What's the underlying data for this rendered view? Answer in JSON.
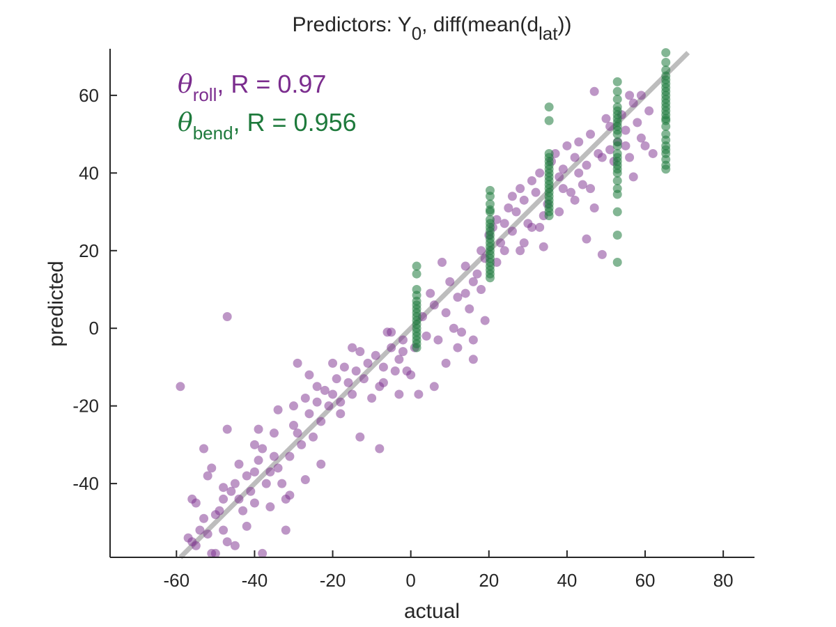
{
  "title": {
    "main": "Predictors: Y",
    "sub1": "0",
    "mid": ", diff(mean(d",
    "sub2": "lat",
    "end": "))"
  },
  "chart_data": {
    "type": "scatter",
    "xlabel": "actual",
    "ylabel": "predicted",
    "xlim": [
      -77,
      88
    ],
    "ylim": [
      -59,
      72
    ],
    "xticks": [
      -60,
      -40,
      -20,
      0,
      20,
      40,
      60,
      80
    ],
    "yticks": [
      -40,
      -20,
      0,
      20,
      40,
      60
    ],
    "xtick_labels": [
      "-60",
      "-40",
      "-20",
      "0",
      "20",
      "40",
      "60",
      "80"
    ],
    "ytick_labels": [
      "-40",
      "-20",
      "0",
      "20",
      "40",
      "60"
    ],
    "grid": false,
    "legend_placement": "top-left",
    "reference_line": {
      "from": [
        -59,
        -59
      ],
      "to": [
        71,
        71
      ],
      "color": "#bdbdbd"
    },
    "series": [
      {
        "name": "θroll",
        "legend_text": ", R = 0.97",
        "legend_sub": "roll",
        "color": "#7b2d8e",
        "r": 0.97,
        "points": [
          [
            -59,
            -15
          ],
          [
            -57,
            -54
          ],
          [
            -56,
            -44
          ],
          [
            -55,
            -45
          ],
          [
            -56,
            -55
          ],
          [
            -54,
            -52
          ],
          [
            -53,
            -49
          ],
          [
            -52,
            -53
          ],
          [
            -51,
            -58
          ],
          [
            -53,
            -31
          ],
          [
            -52,
            -38
          ],
          [
            -50,
            -48
          ],
          [
            -49,
            -47
          ],
          [
            -48,
            -52
          ],
          [
            -47,
            -55
          ],
          [
            -48,
            -41
          ],
          [
            -47,
            -26
          ],
          [
            -46,
            -42
          ],
          [
            -45,
            -40
          ],
          [
            -44,
            -44
          ],
          [
            -43,
            -47
          ],
          [
            -42,
            -38
          ],
          [
            -41,
            -42
          ],
          [
            -40,
            -30
          ],
          [
            -40,
            -37
          ],
          [
            -39,
            -34
          ],
          [
            -38,
            -31
          ],
          [
            -37,
            -40
          ],
          [
            -36,
            -37
          ],
          [
            -35,
            -33
          ],
          [
            -34,
            -36
          ],
          [
            -33,
            -40
          ],
          [
            -32,
            -44
          ],
          [
            -31,
            -33
          ],
          [
            -30,
            -25
          ],
          [
            -29,
            -27
          ],
          [
            -28,
            -30
          ],
          [
            -27,
            -18
          ],
          [
            -26,
            -22
          ],
          [
            -25,
            -28
          ],
          [
            -24,
            -19
          ],
          [
            -23,
            -24
          ],
          [
            -22,
            -16
          ],
          [
            -21,
            -20
          ],
          [
            -20,
            -17
          ],
          [
            -19,
            -13
          ],
          [
            -18,
            -19
          ],
          [
            -17,
            -10
          ],
          [
            -16,
            -14
          ],
          [
            -15,
            -17
          ],
          [
            -14,
            -11
          ],
          [
            -13,
            -6
          ],
          [
            -12,
            -13
          ],
          [
            -11,
            -9
          ],
          [
            -10,
            -18
          ],
          [
            -9,
            -7
          ],
          [
            -8,
            -15
          ],
          [
            -7,
            -10
          ],
          [
            -6,
            -1
          ],
          [
            -5,
            -5
          ],
          [
            -4,
            -11
          ],
          [
            -3,
            -8
          ],
          [
            -2,
            -3
          ],
          [
            -1,
            -11
          ],
          [
            0,
            -12
          ],
          [
            1,
            -5
          ],
          [
            -47,
            3
          ],
          [
            -38,
            -58
          ],
          [
            -32,
            -52
          ],
          [
            -8,
            -31
          ],
          [
            2,
            -17
          ],
          [
            6,
            -15
          ],
          [
            3,
            3
          ],
          [
            4,
            -2
          ],
          [
            5,
            9
          ],
          [
            6,
            6
          ],
          [
            7,
            -3
          ],
          [
            8,
            17
          ],
          [
            9,
            -9
          ],
          [
            10,
            12
          ],
          [
            11,
            0
          ],
          [
            12,
            8
          ],
          [
            13,
            -1
          ],
          [
            14,
            16
          ],
          [
            15,
            5
          ],
          [
            16,
            -8
          ],
          [
            17,
            14
          ],
          [
            18,
            20
          ],
          [
            18,
            10
          ],
          [
            19,
            2
          ],
          [
            20,
            24
          ],
          [
            19,
            18
          ],
          [
            21,
            26
          ],
          [
            22,
            28
          ],
          [
            23,
            22
          ],
          [
            24,
            27
          ],
          [
            25,
            31
          ],
          [
            26,
            34
          ],
          [
            27,
            30
          ],
          [
            28,
            36
          ],
          [
            29,
            33
          ],
          [
            30,
            27
          ],
          [
            31,
            38
          ],
          [
            32,
            35
          ],
          [
            33,
            40
          ],
          [
            34,
            29
          ],
          [
            34,
            21
          ],
          [
            36,
            43
          ],
          [
            37,
            45
          ],
          [
            38,
            39
          ],
          [
            39,
            41
          ],
          [
            40,
            47
          ],
          [
            41,
            35
          ],
          [
            42,
            44
          ],
          [
            43,
            48
          ],
          [
            44,
            37
          ],
          [
            45,
            42
          ],
          [
            45,
            23
          ],
          [
            46,
            50
          ],
          [
            47,
            31
          ],
          [
            47,
            61
          ],
          [
            48,
            45
          ],
          [
            49,
            19
          ],
          [
            50,
            54
          ],
          [
            51,
            46
          ],
          [
            52,
            43
          ],
          [
            53,
            48
          ],
          [
            54,
            55
          ],
          [
            55,
            51
          ],
          [
            56,
            44
          ],
          [
            57,
            58
          ],
          [
            58,
            53
          ],
          [
            59,
            49
          ],
          [
            57,
            39
          ],
          [
            60,
            47
          ],
          [
            61,
            56
          ],
          [
            62,
            45
          ],
          [
            56,
            60
          ],
          [
            59,
            60
          ],
          [
            46,
            36
          ],
          [
            42,
            33
          ],
          [
            38,
            30
          ],
          [
            33,
            26
          ],
          [
            28,
            20
          ],
          [
            24,
            20
          ],
          [
            16,
            -3
          ],
          [
            12,
            -5
          ],
          [
            -2,
            -6
          ],
          [
            -5,
            -1
          ],
          [
            -15,
            -5
          ],
          [
            -20,
            -9
          ],
          [
            -26,
            -12
          ],
          [
            -30,
            -20
          ],
          [
            -35,
            -27
          ],
          [
            -40,
            -45
          ],
          [
            -44,
            -35
          ],
          [
            -48,
            -44
          ],
          [
            -50,
            -58
          ],
          [
            -55,
            -56
          ],
          [
            -23,
            -35
          ],
          [
            -27,
            -39
          ],
          [
            -31,
            -43
          ],
          [
            -36,
            -46
          ],
          [
            -42,
            -51
          ],
          [
            -45,
            -56
          ],
          [
            -51,
            -36
          ],
          [
            -13,
            -28
          ],
          [
            -18,
            -22
          ],
          [
            -24,
            -15
          ],
          [
            -29,
            -9
          ],
          [
            -34,
            -21
          ],
          [
            -39,
            -26
          ],
          [
            -7,
            -14
          ],
          [
            -3,
            -17
          ],
          [
            9,
            4
          ],
          [
            14,
            9
          ],
          [
            16,
            12
          ],
          [
            22,
            17
          ],
          [
            26,
            25
          ],
          [
            29,
            22
          ],
          [
            31,
            26
          ],
          [
            35,
            32
          ],
          [
            39,
            36
          ],
          [
            43,
            40
          ],
          [
            49,
            44
          ],
          [
            51,
            52
          ],
          [
            55,
            47
          ]
        ]
      },
      {
        "name": "θbend",
        "legend_text": ", R = 0.956",
        "legend_sub": "bend",
        "color": "#1e7a3c",
        "r": 0.956,
        "columns": [
          {
            "x": 1.5,
            "values": [
              16,
              14,
              10,
              8.5,
              7,
              6,
              5,
              4,
              3,
              2,
              1,
              0,
              -1,
              -2,
              -3,
              -4,
              -5
            ]
          },
          {
            "x": 20.3,
            "values": [
              35.5,
              34,
              32,
              30,
              28,
              26,
              25,
              24,
              23,
              22,
              21,
              20,
              19,
              18,
              17,
              16,
              15,
              14,
              13,
              30.5,
              27
            ]
          },
          {
            "x": 35.4,
            "values": [
              57,
              53.5,
              45,
              43,
              41,
              40,
              39,
              38,
              37,
              36,
              35,
              34,
              33,
              32,
              31,
              30,
              29,
              44,
              42
            ]
          },
          {
            "x": 52.9,
            "values": [
              63.5,
              61,
              59,
              57,
              56,
              55,
              54,
              53,
              52,
              51,
              50,
              48,
              47,
              45,
              44,
              43,
              42,
              41,
              40,
              38,
              36,
              34.5,
              30,
              24,
              17
            ]
          },
          {
            "x": 65.3,
            "values": [
              71,
              68.5,
              66.5,
              65,
              64,
              63,
              62,
              61,
              60,
              59,
              57,
              56,
              55,
              53.5,
              52,
              50,
              48.5,
              47,
              46,
              45,
              43.5,
              42,
              41,
              58,
              54
            ]
          }
        ]
      }
    ]
  }
}
